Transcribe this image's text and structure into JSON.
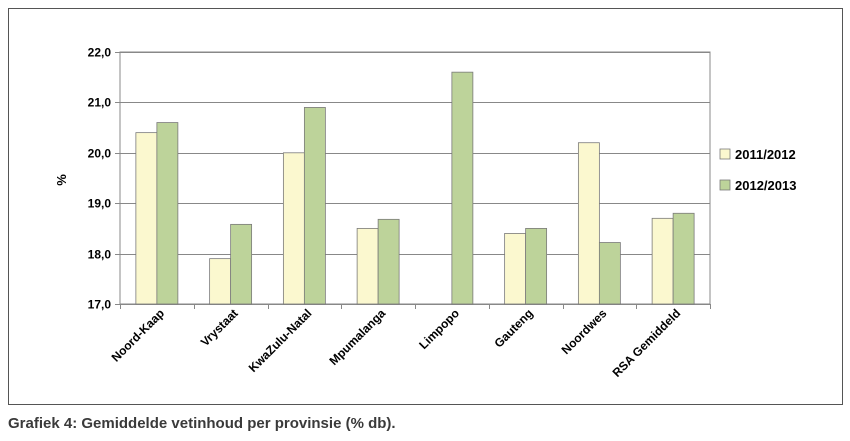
{
  "caption": "Grafiek 4: Gemiddelde vetinhoud per provinsie (% db).",
  "chart_data": {
    "type": "bar",
    "title": "",
    "xlabel": "",
    "ylabel": "%",
    "ylim": [
      17.0,
      22.0
    ],
    "yticks": [
      "17,0",
      "18,0",
      "19,0",
      "20,0",
      "21,0",
      "22,0"
    ],
    "grid": true,
    "legend_position": "right",
    "categories": [
      "Noord-Kaap",
      "Vrystaat",
      "KwaZulu-Natal",
      "Mpumalanga",
      "Limpopo",
      "Gauteng",
      "Noordwes",
      "RSA Gemiddeld"
    ],
    "series": [
      {
        "name": "2011/2012",
        "color": "#fbf8cf",
        "values": [
          20.4,
          17.9,
          20.0,
          18.5,
          null,
          18.4,
          20.2,
          18.7
        ]
      },
      {
        "name": "2012/2013",
        "color": "#bdd39a",
        "values": [
          20.6,
          18.58,
          20.9,
          18.68,
          21.6,
          18.5,
          18.22,
          18.8
        ]
      }
    ]
  }
}
